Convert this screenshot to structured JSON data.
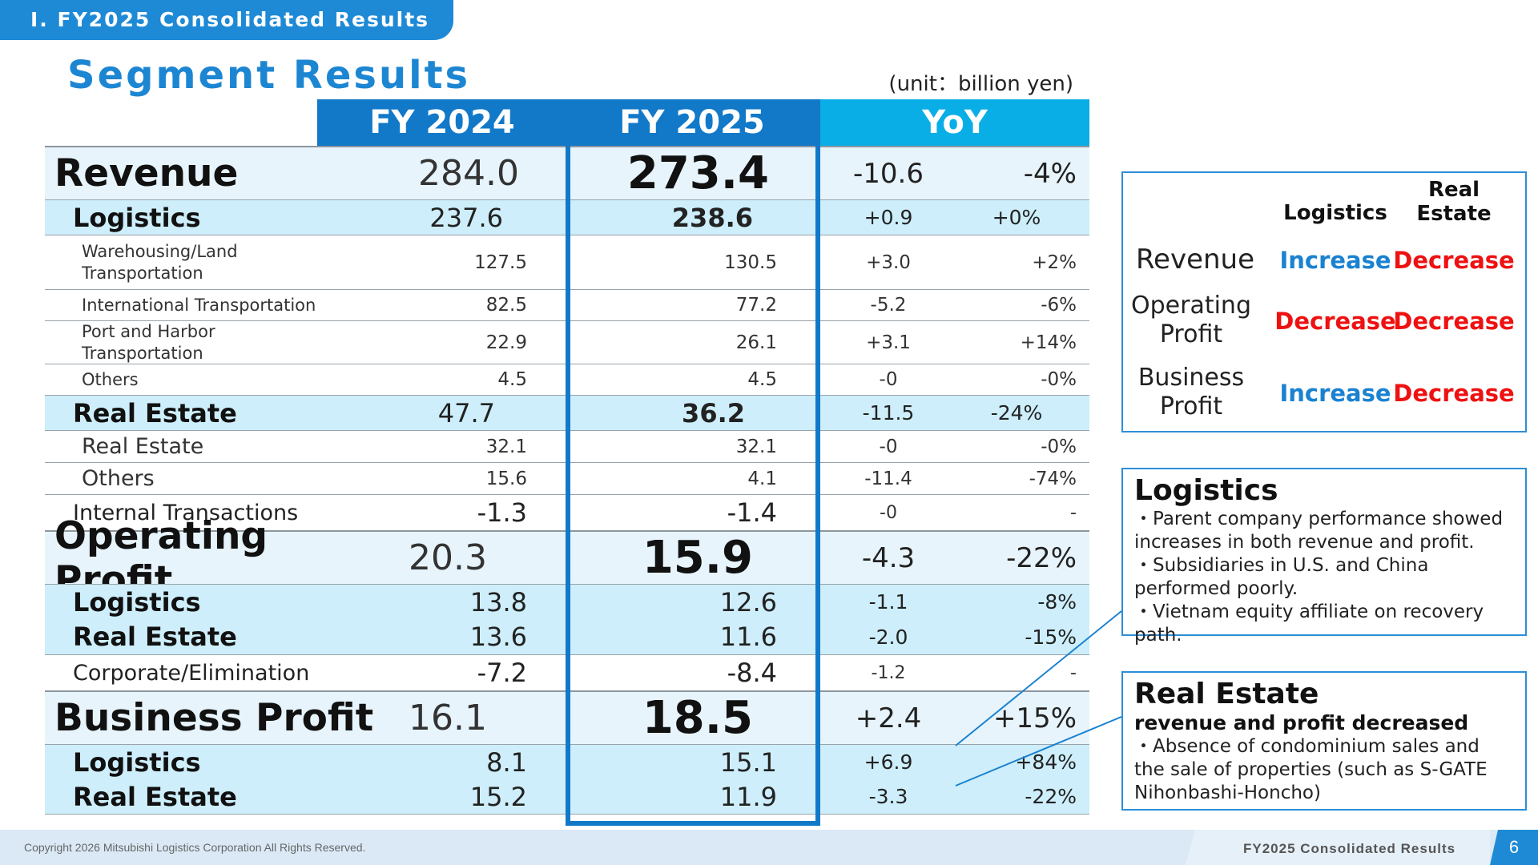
{
  "section_tab": "Ⅰ. FY2025 Consolidated Results",
  "page_title": "Segment Results",
  "unit_note": "(unit：billion yen)",
  "headers": {
    "fy2024": "FY 2024",
    "fy2025": "FY 2025",
    "yoy": "YoY"
  },
  "rows": [
    {
      "label": "Revenue",
      "fy2024": "284.0",
      "fy2025": "273.4",
      "yoy": "-10.6",
      "pct": "-4%"
    },
    {
      "label": "Logistics",
      "fy2024": "237.6",
      "fy2025": "238.6",
      "yoy": "+0.9",
      "pct": "+0%"
    },
    {
      "label": "Warehousing/Land Transportation",
      "fy2024": "127.5",
      "fy2025": "130.5",
      "yoy": "+3.0",
      "pct": "+2%"
    },
    {
      "label": "International Transportation",
      "fy2024": "82.5",
      "fy2025": "77.2",
      "yoy": "-5.2",
      "pct": "-6%"
    },
    {
      "label": "Port and Harbor Transportation",
      "fy2024": "22.9",
      "fy2025": "26.1",
      "yoy": "+3.1",
      "pct": "+14%"
    },
    {
      "label": "Others",
      "fy2024": "4.5",
      "fy2025": "4.5",
      "yoy": "-0",
      "pct": "-0%"
    },
    {
      "label": "Real Estate",
      "fy2024": "47.7",
      "fy2025": "36.2",
      "yoy": "-11.5",
      "pct": "-24%"
    },
    {
      "label": "Real Estate",
      "fy2024": "32.1",
      "fy2025": "32.1",
      "yoy": "-0",
      "pct": "-0%"
    },
    {
      "label": "Others",
      "fy2024": "15.6",
      "fy2025": "4.1",
      "yoy": "-11.4",
      "pct": "-74%"
    },
    {
      "label": "Internal Transactions",
      "fy2024": "-1.3",
      "fy2025": "-1.4",
      "yoy": "-0",
      "pct": "-"
    },
    {
      "label": "Operating Profit",
      "fy2024": "20.3",
      "fy2025": "15.9",
      "yoy": "-4.3",
      "pct": "-22%"
    },
    {
      "label": "Logistics",
      "fy2024": "13.8",
      "fy2025": "12.6",
      "yoy": "-1.1",
      "pct": "-8%"
    },
    {
      "label": "Real Estate",
      "fy2024": "13.6",
      "fy2025": "11.6",
      "yoy": "-2.0",
      "pct": "-15%"
    },
    {
      "label": "Corporate/Elimination",
      "fy2024": "-7.2",
      "fy2025": "-8.4",
      "yoy": "-1.2",
      "pct": "-"
    },
    {
      "label": "Business Profit",
      "fy2024": "16.1",
      "fy2025": "18.5",
      "yoy": "+2.4",
      "pct": "+15%"
    },
    {
      "label": "Logistics",
      "fy2024": "8.1",
      "fy2025": "15.1",
      "yoy": "+6.9",
      "pct": "+84%"
    },
    {
      "label": "Real Estate",
      "fy2024": "15.2",
      "fy2025": "11.9",
      "yoy": "-3.3",
      "pct": "-22%"
    }
  ],
  "summary": {
    "col_logistics": "Logistics",
    "col_real_estate": "Real Estate",
    "rows": [
      {
        "label": "Revenue",
        "logistics": "Increase",
        "real_estate": "Decrease"
      },
      {
        "label": "Operating Profit",
        "logistics": "Decrease",
        "real_estate": "Decrease"
      },
      {
        "label": "Business Profit",
        "logistics": "Increase",
        "real_estate": "Decrease"
      }
    ],
    "colors": {
      "increase": "#1a82d0",
      "decrease": "#ee1111"
    }
  },
  "notes": {
    "logistics": {
      "title": "Logistics",
      "bullets": [
        "・Parent company performance showed increases in both revenue and profit.",
        "・Subsidiaries in U.S. and China performed poorly.",
        "・Vietnam equity affiliate on recovery path."
      ]
    },
    "real_estate": {
      "title": "Real Estate",
      "subtitle": "revenue and profit decreased",
      "bullets": [
        "・Absence of condominium sales and the sale of properties (such as S-GATE Nihonbashi-Honcho)"
      ]
    }
  },
  "footer": {
    "copyright": "Copyright 2026 Mitsubishi Logistics Corporation All Rights Reserved.",
    "title": "FY2025 Consolidated Results",
    "page_number": "6"
  },
  "colors": {
    "accent": "#1279c9",
    "yoy_header": "#0aaee6",
    "tab": "#1e8ad6"
  }
}
